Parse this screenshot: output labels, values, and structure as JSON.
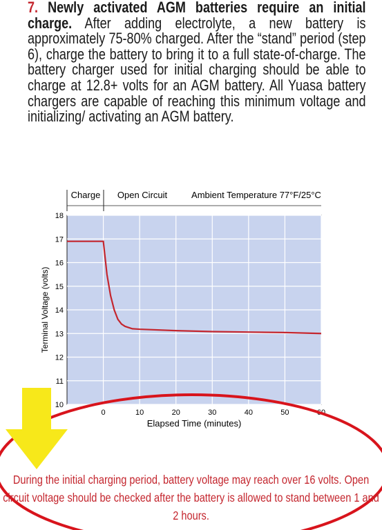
{
  "paragraph": {
    "number": "7.",
    "heading": "Newly activated AGM batteries require an initial charge.",
    "body": "After adding electrolyte, a new battery is approximately 75-80% charged. After the “stand” period (step 6), charge the battery to bring it to a full state-of-charge. The battery charger used for initial charging should be able to charge at 12.8+ volts for an AGM battery. All Yuasa battery chargers are capable of reaching this minimum voltage and initializing/ activating an AGM battery."
  },
  "chart_data": {
    "type": "line",
    "region_labels": [
      "Charge",
      "Open Circuit",
      "Ambient Temperature 77°F/25°C"
    ],
    "x_label": "Elapsed Time (minutes)",
    "y_label": "Terminal Voltage (volts)",
    "x": [
      -10,
      0,
      1,
      2,
      3,
      4,
      5,
      6,
      8,
      10,
      20,
      30,
      40,
      50,
      60
    ],
    "series": [
      {
        "color": "#c4262e",
        "values": [
          16.9,
          16.9,
          15.5,
          14.6,
          14.0,
          13.6,
          13.4,
          13.3,
          13.2,
          13.18,
          13.12,
          13.08,
          13.06,
          13.04,
          13.0
        ]
      }
    ],
    "xlim": [
      -10,
      60
    ],
    "xticks": [
      0,
      10,
      20,
      30,
      40,
      50,
      60
    ],
    "ylim": [
      10,
      18
    ],
    "yticks": [
      10,
      11,
      12,
      13,
      14,
      15,
      16,
      17,
      18
    ],
    "grid": true
  },
  "annotation": "During the initial charging period, battery voltage may reach over 16 volts. Open circuit voltage should be checked after the battery is allowed to stand between 1 and 2 hours."
}
